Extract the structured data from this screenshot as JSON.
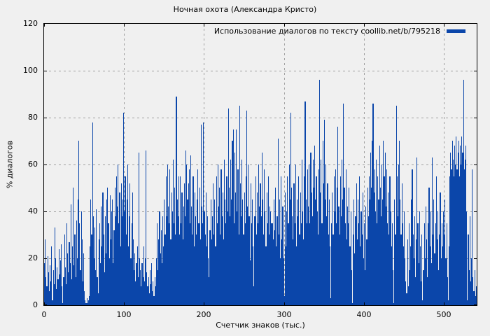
{
  "figure": {
    "title": "Ночная охота (Александра Кристо)",
    "xlabel": "Счетчик знаков (тыс.)",
    "ylabel": "% диалогов",
    "background": "#f0f0f0",
    "legend": {
      "label": "Использование диалогов по тексту coollib.net/b/795218",
      "swatch_color": "#0b46aa"
    }
  },
  "chart_data": {
    "type": "bar",
    "title": "Ночная охота (Александра Кристо)",
    "xlabel": "Счетчик знаков (тыс.)",
    "ylabel": "% диалогов",
    "legend_label": "Использование диалогов по тексту coollib.net/b/795218",
    "legend_position": "top-right",
    "grid": true,
    "xlim": [
      0,
      541
    ],
    "ylim": [
      0,
      120
    ],
    "xticks": [
      0,
      100,
      200,
      300,
      400,
      500
    ],
    "yticks": [
      0,
      20,
      40,
      60,
      80,
      100,
      120
    ],
    "x_step": 1,
    "bar_color": "#0b46aa",
    "grid_color": "#a0a0a0",
    "values": [
      18,
      28,
      12,
      8,
      21,
      14,
      6,
      17,
      10,
      25,
      2,
      15,
      9,
      33,
      20,
      7,
      16,
      11,
      24,
      13,
      19,
      26,
      8,
      1,
      12,
      30,
      16,
      9,
      35,
      22,
      14,
      27,
      18,
      43,
      11,
      25,
      50,
      17,
      30,
      12,
      36,
      20,
      45,
      70,
      35,
      15,
      40,
      28,
      10,
      22,
      6,
      2,
      1,
      3,
      1,
      2,
      4,
      25,
      45,
      30,
      78,
      38,
      20,
      33,
      15,
      41,
      12,
      5,
      28,
      35,
      18,
      42,
      25,
      48,
      30,
      14,
      38,
      22,
      45,
      50,
      35,
      20,
      47,
      28,
      40,
      45,
      18,
      32,
      50,
      38,
      55,
      42,
      60,
      35,
      48,
      25,
      52,
      38,
      45,
      82,
      40,
      55,
      30,
      45,
      60,
      25,
      38,
      52,
      20,
      35,
      48,
      28,
      15,
      22,
      10,
      18,
      25,
      12,
      65,
      20,
      15,
      8,
      18,
      12,
      25,
      10,
      20,
      66,
      14,
      8,
      12,
      5,
      15,
      9,
      18,
      6,
      10,
      4,
      12,
      8,
      20,
      35,
      15,
      28,
      40,
      22,
      32,
      18,
      38,
      25,
      45,
      30,
      55,
      38,
      60,
      42,
      35,
      58,
      28,
      48,
      40,
      62,
      35,
      50,
      30,
      89,
      45,
      38,
      55,
      30,
      55,
      35,
      48,
      28,
      42,
      52,
      38,
      66,
      60,
      45,
      52,
      58,
      35,
      64,
      42,
      30,
      55,
      25,
      48,
      38,
      30,
      45,
      58,
      35,
      50,
      28,
      77,
      42,
      35,
      78,
      40,
      30,
      48,
      25,
      38,
      20,
      12,
      32,
      45,
      28,
      38,
      52,
      30,
      45,
      25,
      55,
      35,
      60,
      42,
      50,
      30,
      58,
      38,
      48,
      28,
      62,
      45,
      35,
      55,
      40,
      84,
      50,
      38,
      62,
      45,
      70,
      75,
      35,
      65,
      48,
      75,
      40,
      58,
      30,
      85,
      52,
      38,
      62,
      45,
      30,
      48,
      35,
      55,
      83,
      42,
      60,
      38,
      19,
      52,
      35,
      45,
      25,
      8,
      38,
      55,
      30,
      48,
      35,
      60,
      42,
      52,
      38,
      65,
      45,
      30,
      58,
      40,
      25,
      48,
      35,
      55,
      30,
      42,
      40,
      35,
      35,
      28,
      45,
      32,
      50,
      25,
      38,
      71,
      30,
      45,
      20,
      55,
      28,
      42,
      20,
      4,
      48,
      25,
      40,
      55,
      35,
      60,
      45,
      82,
      50,
      38,
      28,
      52,
      35,
      60,
      25,
      45,
      38,
      55,
      30,
      48,
      35,
      62,
      40,
      28,
      55,
      87,
      45,
      35,
      58,
      42,
      60,
      35,
      65,
      48,
      38,
      62,
      50,
      68,
      45,
      55,
      40,
      30,
      58,
      96,
      48,
      62,
      35,
      70,
      52,
      79,
      45,
      60,
      38,
      52,
      30,
      45,
      25,
      3,
      35,
      48,
      30,
      55,
      40,
      58,
      35,
      50,
      76,
      42,
      30,
      55,
      38,
      62,
      45,
      86,
      50,
      35,
      58,
      28,
      42,
      35,
      50,
      25,
      40,
      15,
      1,
      30,
      45,
      22,
      38,
      52,
      28,
      45,
      35,
      55,
      25,
      40,
      30,
      48,
      20,
      35,
      15,
      42,
      28,
      50,
      38,
      55,
      45,
      65,
      50,
      70,
      86,
      48,
      58,
      40,
      62,
      35,
      55,
      45,
      68,
      50,
      38,
      60,
      45,
      70,
      55,
      65,
      42,
      58,
      35,
      48,
      30,
      55,
      40,
      25,
      35,
      15,
      1,
      45,
      30,
      85,
      55,
      38,
      60,
      70,
      45,
      30,
      52,
      35,
      25,
      40,
      20,
      10,
      5,
      28,
      8,
      35,
      15,
      25,
      45,
      58,
      30,
      20,
      38,
      12,
      28,
      63,
      35,
      18,
      40,
      25,
      10,
      30,
      2,
      15,
      35,
      20,
      42,
      28,
      12,
      35,
      50,
      25,
      40,
      18,
      63,
      30,
      45,
      22,
      35,
      55,
      28,
      40,
      15,
      30,
      48,
      20,
      35,
      25,
      40,
      30,
      45,
      20,
      35,
      12,
      2,
      25,
      55,
      65,
      58,
      70,
      62,
      55,
      68,
      60,
      72,
      58,
      65,
      70,
      55,
      68,
      60,
      72,
      65,
      96,
      58,
      62,
      68,
      40,
      2,
      30,
      15,
      38,
      10,
      20,
      58,
      12,
      6,
      15,
      4,
      8
    ]
  }
}
